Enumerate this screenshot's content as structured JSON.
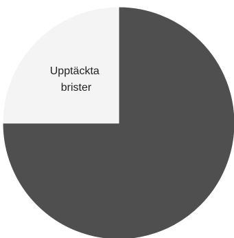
{
  "chart_data": {
    "type": "pie",
    "title": "",
    "slices": [
      {
        "label": "Upptäckta brister",
        "value": 25,
        "color": "#f4f4f4"
      },
      {
        "label": "",
        "value": 75,
        "color": "#4f4f4f"
      }
    ],
    "annotation_lines": [
      "Upptäckta",
      "brister"
    ],
    "legend": "none"
  }
}
